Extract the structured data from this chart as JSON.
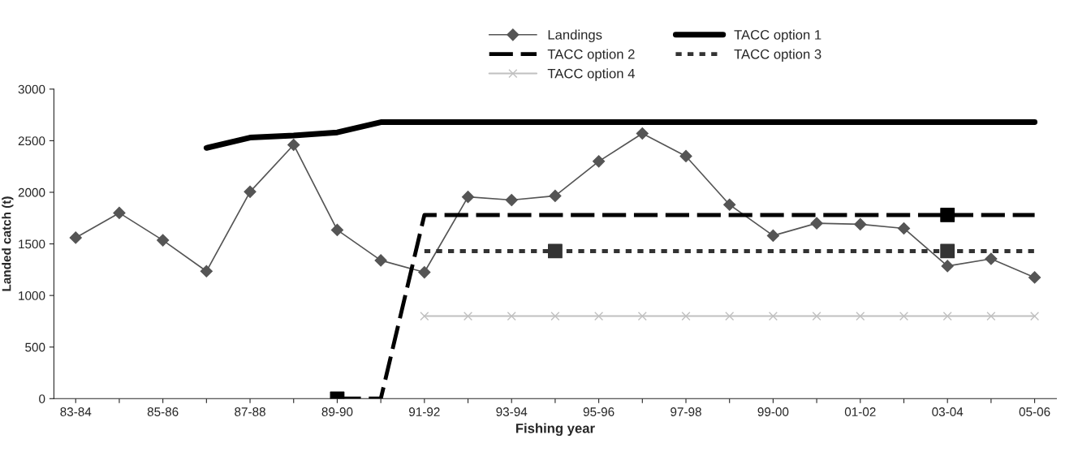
{
  "chart_data": {
    "type": "line",
    "xlabel": "Fishing year",
    "ylabel": "Landed catch (t)",
    "categories": [
      "83-84",
      null,
      "85-86",
      null,
      "87-88",
      null,
      "89-90",
      null,
      "91-92",
      null,
      "93-94",
      null,
      "95-96",
      null,
      "97-98",
      null,
      "99-00",
      null,
      "01-02",
      null,
      "03-04",
      null,
      "05-06"
    ],
    "ylim": [
      0,
      3000
    ],
    "yticks": [
      0,
      500,
      1000,
      1500,
      2000,
      2500,
      3000
    ],
    "grid": false,
    "legend": "top",
    "series": [
      {
        "name": "Landings",
        "color": "#555555",
        "marker": "diamond",
        "line_style": "solid",
        "values": [
          1560,
          1800,
          1535,
          1235,
          2005,
          2460,
          1635,
          1340,
          1225,
          1955,
          1925,
          1965,
          2300,
          2570,
          2350,
          1880,
          1580,
          1700,
          1690,
          1650,
          1285,
          1355,
          1175
        ]
      },
      {
        "name": "TACC option 1",
        "color": "#000000",
        "marker": "none",
        "line_style": "solid",
        "values": [
          null,
          null,
          null,
          2430,
          2530,
          2550,
          2580,
          2680,
          2680,
          2680,
          2680,
          2680,
          2680,
          2680,
          2680,
          2680,
          2680,
          2680,
          2680,
          2680,
          2680,
          2680,
          2680
        ]
      },
      {
        "name": "TACC option 2",
        "color": "#000000",
        "marker": "none",
        "line_style": "dashed",
        "values": [
          null,
          null,
          null,
          null,
          null,
          null,
          0,
          0,
          1780,
          1780,
          1780,
          1780,
          1780,
          1780,
          1780,
          1780,
          1780,
          1780,
          1780,
          1780,
          1780,
          1780,
          1780
        ]
      },
      {
        "name": "TACC option 3",
        "color": "#333333",
        "marker": "none",
        "line_style": "dotted",
        "values": [
          null,
          null,
          null,
          null,
          null,
          null,
          null,
          null,
          1430,
          1430,
          1430,
          1430,
          1430,
          1430,
          1430,
          1430,
          1430,
          1430,
          1430,
          1430,
          1430,
          1430,
          1430
        ]
      },
      {
        "name": "TACC option 4",
        "color": "#c0c0c0",
        "marker": "cross",
        "line_style": "solid",
        "values": [
          null,
          null,
          null,
          null,
          null,
          null,
          null,
          null,
          800,
          800,
          800,
          800,
          800,
          800,
          800,
          800,
          800,
          800,
          800,
          800,
          800,
          800,
          800
        ]
      },
      {
        "type": "scatter",
        "color": "#000000",
        "marker": "square",
        "values": [
          null,
          null,
          null,
          null,
          null,
          null,
          0,
          null,
          null,
          null,
          null,
          null,
          null,
          null,
          null,
          null,
          null,
          null,
          null,
          null,
          1780,
          null,
          null
        ]
      },
      {
        "type": "scatter",
        "color": "#333333",
        "marker": "square",
        "values": [
          null,
          null,
          null,
          null,
          null,
          null,
          null,
          null,
          null,
          null,
          null,
          1430,
          null,
          null,
          null,
          null,
          null,
          null,
          null,
          null,
          1430,
          null,
          null
        ]
      }
    ]
  }
}
